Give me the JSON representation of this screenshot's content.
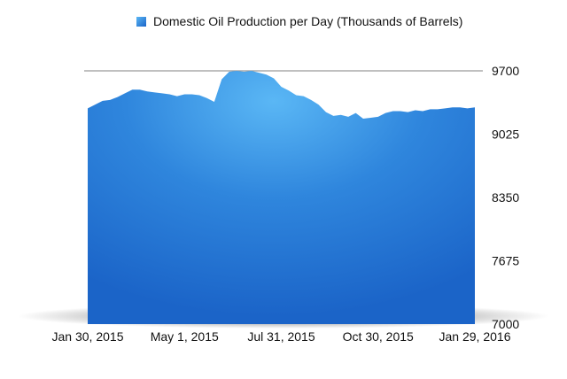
{
  "chart_data": {
    "type": "area",
    "legend": {
      "placement": "top-center",
      "entries": [
        {
          "name": "Domestic Oil Production per Day (Thousands of Barrels)",
          "color": "#2f7fd6"
        }
      ]
    },
    "series": [
      {
        "name": "Domestic Oil Production per Day (Thousands of Barrels)",
        "color": "#2f7fd6",
        "x": [
          "2015-01-30",
          "2015-02-06",
          "2015-02-13",
          "2015-02-20",
          "2015-02-27",
          "2015-03-06",
          "2015-03-13",
          "2015-03-20",
          "2015-03-27",
          "2015-04-03",
          "2015-04-10",
          "2015-04-17",
          "2015-04-24",
          "2015-05-01",
          "2015-05-08",
          "2015-05-15",
          "2015-05-22",
          "2015-05-29",
          "2015-06-05",
          "2015-06-12",
          "2015-06-19",
          "2015-06-26",
          "2015-07-03",
          "2015-07-10",
          "2015-07-17",
          "2015-07-24",
          "2015-07-31",
          "2015-08-07",
          "2015-08-14",
          "2015-08-21",
          "2015-08-28",
          "2015-09-04",
          "2015-09-11",
          "2015-09-18",
          "2015-09-25",
          "2015-10-02",
          "2015-10-09",
          "2015-10-16",
          "2015-10-23",
          "2015-10-30",
          "2015-11-06",
          "2015-11-13",
          "2015-11-20",
          "2015-11-27",
          "2015-12-04",
          "2015-12-11",
          "2015-12-18",
          "2015-12-25",
          "2016-01-01",
          "2016-01-08",
          "2016-01-15",
          "2016-01-22",
          "2016-01-29"
        ],
        "y": [
          9300,
          9340,
          9380,
          9390,
          9420,
          9460,
          9500,
          9500,
          9480,
          9470,
          9460,
          9450,
          9430,
          9450,
          9450,
          9440,
          9410,
          9370,
          9610,
          9690,
          9700,
          9690,
          9700,
          9680,
          9660,
          9620,
          9530,
          9490,
          9440,
          9430,
          9390,
          9340,
          9260,
          9220,
          9230,
          9210,
          9250,
          9190,
          9200,
          9210,
          9250,
          9270,
          9270,
          9260,
          9280,
          9270,
          9290,
          9290,
          9300,
          9310,
          9310,
          9300,
          9310
        ]
      }
    ],
    "x_ticks": [
      "Jan 30, 2015",
      "May 1, 2015",
      "Jul 31, 2015",
      "Oct 30, 2015",
      "Jan 29, 2016"
    ],
    "x_tick_dates": [
      "2015-01-30",
      "2015-05-01",
      "2015-07-31",
      "2015-10-30",
      "2016-01-29"
    ],
    "x_range": [
      "2015-01-30",
      "2016-01-29"
    ],
    "y_ticks": [
      9700,
      9025,
      8350,
      7675,
      7000
    ],
    "ylim": [
      7000,
      9700
    ],
    "y_axis_side": "right",
    "grid": {
      "horizontal": "top-line-only",
      "vertical": false
    }
  }
}
